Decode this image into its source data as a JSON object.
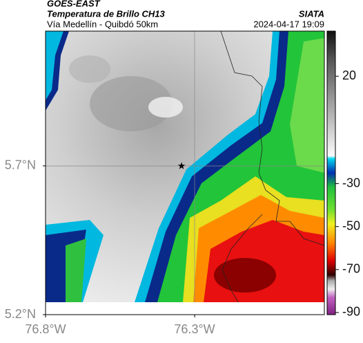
{
  "header": {
    "satellite": "GOES-EAST",
    "product": "Temperatura de Brillo CH13",
    "region": "Vía Medellín - Quibdó 50km",
    "source": "SIATA",
    "datetime": "2024-04-17 19:09"
  },
  "map": {
    "lon_range": [
      -76.8,
      -75.865
    ],
    "lat_range": [
      5.2,
      6.153
    ],
    "lon_ticks": [
      {
        "value": -76.8,
        "label": "76.8°W"
      },
      {
        "value": -76.3,
        "label": "76.3°W"
      }
    ],
    "lat_ticks": [
      {
        "value": 5.7,
        "label": "5.7°N"
      },
      {
        "value": 5.2,
        "label": "5.2°N"
      }
    ]
  },
  "colorbar": {
    "range": [
      -91,
      41
    ],
    "ticks": [
      20,
      -30,
      -50,
      -70,
      -90
    ]
  }
}
